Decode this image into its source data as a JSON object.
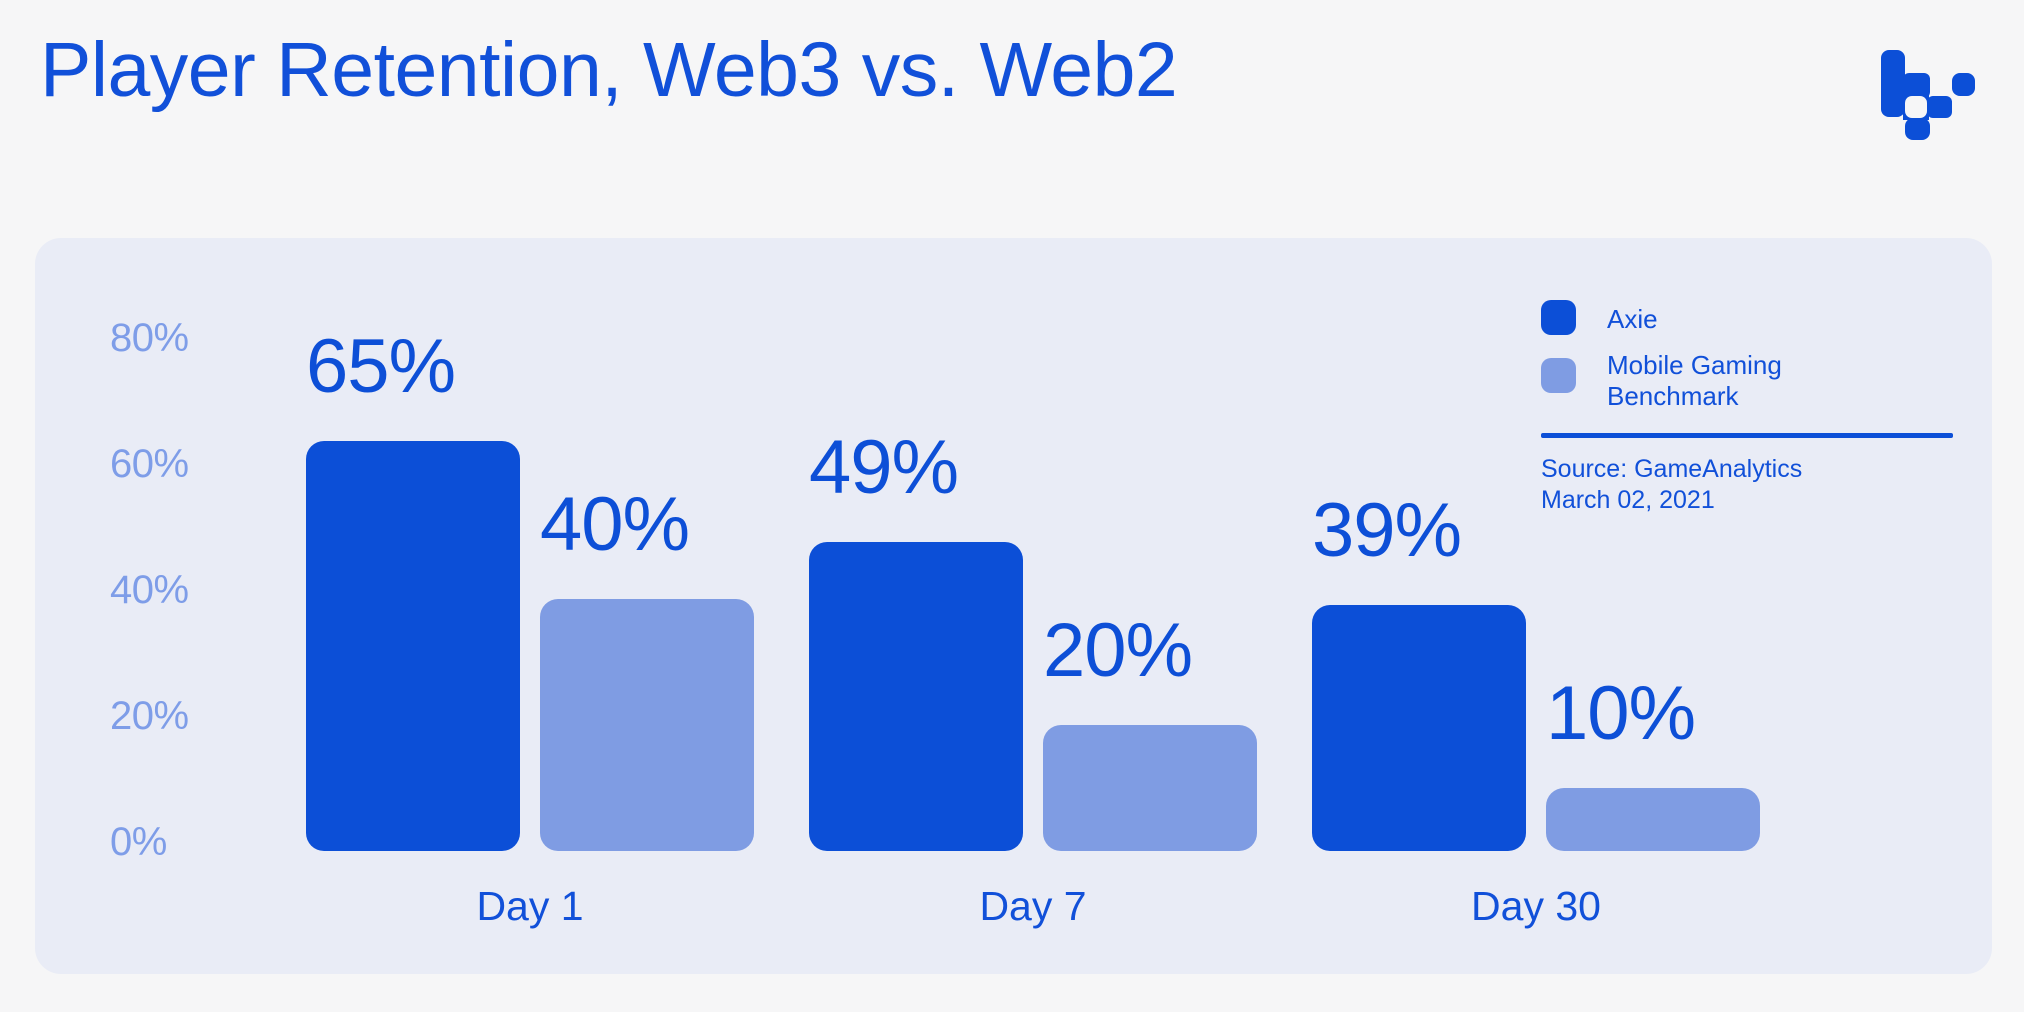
{
  "header": {
    "title": "Player Retention, Web3 vs. Web2"
  },
  "logo": {
    "icon": "pixel-mark-logo",
    "color": "#0c4fd7"
  },
  "chart_data": {
    "type": "bar",
    "title": "Player Retention, Web3 vs. Web2",
    "categories": [
      "Day 1",
      "Day 7",
      "Day 30"
    ],
    "series": [
      {
        "name": "Axie",
        "color": "#0c4fd7",
        "values": [
          65,
          49,
          39
        ]
      },
      {
        "name": "Mobile Gaming Benchmark",
        "color": "#7f9ce3",
        "values": [
          40,
          20,
          10
        ]
      }
    ],
    "data_labels": {
      "show": true,
      "format": "{value}%",
      "color": "#0d4fd7"
    },
    "y_axis": {
      "min": 0,
      "max": 80,
      "tick_values": [
        80,
        60,
        40,
        20,
        0
      ],
      "tick_format": "{value}%",
      "tick_color": "#7e9de8",
      "grid": false
    },
    "x_axis": {
      "label_color": "#1150d9"
    },
    "legend_position": "top-right",
    "panel_background": "#e9ecf6",
    "ylim": [
      0,
      80
    ]
  },
  "legend": {
    "items": [
      {
        "label": "Axie",
        "color": "#0c4fd7"
      },
      {
        "label": "Mobile Gaming\nBenchmark",
        "color": "#7f9ce3"
      }
    ]
  },
  "source": {
    "line1": "Source: GameAnalytics",
    "line2": "March 02, 2021"
  },
  "colors": {
    "background": "#f6f6f7",
    "panel": "#e9ecf6",
    "primary": "#0c4fd7",
    "secondary": "#7f9ce3",
    "axis_label": "#7e9de8",
    "text_blue": "#1150d9"
  }
}
